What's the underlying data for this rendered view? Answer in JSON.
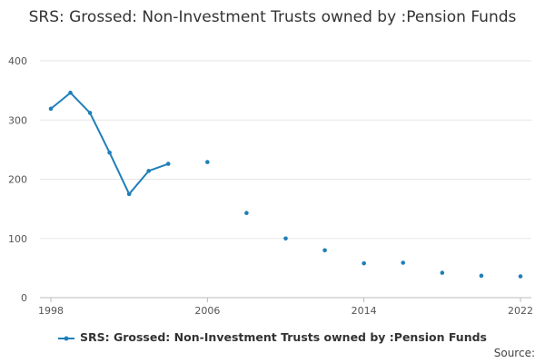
{
  "chart_data": {
    "type": "line",
    "title": "SRS: Grossed: Non-Investment Trusts owned by :Pension Funds",
    "xlabel": "",
    "ylabel": "",
    "xlim": [
      1998,
      2022
    ],
    "ylim": [
      0,
      400
    ],
    "x_ticks": [
      1998,
      2006,
      2014,
      2022
    ],
    "y_ticks": [
      0,
      100,
      200,
      300,
      400
    ],
    "grid": true,
    "legend_position": "bottom",
    "series": [
      {
        "name": "SRS: Grossed: Non-Investment Trusts owned by :Pension Funds",
        "color": "#1f7fb9",
        "points": [
          {
            "x": 1998,
            "y": 319
          },
          {
            "x": 1999,
            "y": 346
          },
          {
            "x": 2000,
            "y": 312
          },
          {
            "x": 2001,
            "y": 245
          },
          {
            "x": 2002,
            "y": 175
          },
          {
            "x": 2003,
            "y": 214
          },
          {
            "x": 2004,
            "y": 226
          },
          {
            "x": 2005,
            "y": null
          },
          {
            "x": 2006,
            "y": 229
          },
          {
            "x": 2007,
            "y": null
          },
          {
            "x": 2008,
            "y": 143
          },
          {
            "x": 2009,
            "y": null
          },
          {
            "x": 2010,
            "y": 100
          },
          {
            "x": 2011,
            "y": null
          },
          {
            "x": 2012,
            "y": 80
          },
          {
            "x": 2013,
            "y": null
          },
          {
            "x": 2014,
            "y": 58
          },
          {
            "x": 2015,
            "y": null
          },
          {
            "x": 2016,
            "y": 59
          },
          {
            "x": 2017,
            "y": null
          },
          {
            "x": 2018,
            "y": 42
          },
          {
            "x": 2019,
            "y": null
          },
          {
            "x": 2020,
            "y": 37
          },
          {
            "x": 2021,
            "y": null
          },
          {
            "x": 2022,
            "y": 36
          }
        ]
      }
    ]
  },
  "legend": {
    "label": "SRS: Grossed: Non-Investment Trusts owned by :Pension Funds"
  },
  "source_label": "Source:"
}
